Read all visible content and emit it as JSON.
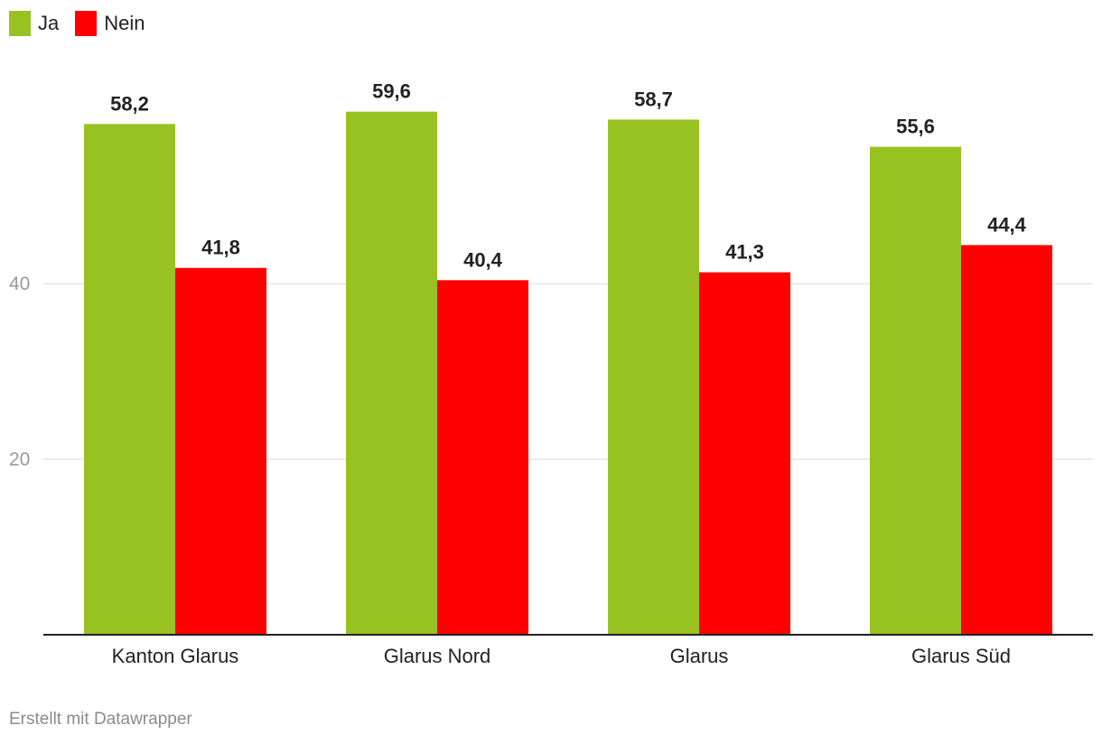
{
  "legend": {
    "items": [
      {
        "label": "Ja",
        "color": "#98c222"
      },
      {
        "label": "Nein",
        "color": "#ff0000"
      }
    ]
  },
  "chart_data": {
    "type": "bar",
    "categories": [
      "Kanton Glarus",
      "Glarus Nord",
      "Glarus",
      "Glarus Süd"
    ],
    "series": [
      {
        "name": "Ja",
        "color": "#98c222",
        "values": [
          58.2,
          59.6,
          58.7,
          55.6
        ],
        "labels": [
          "58,2",
          "59,6",
          "58,7",
          "55,6"
        ]
      },
      {
        "name": "Nein",
        "color": "#ff0000",
        "values": [
          41.8,
          40.4,
          41.3,
          44.4
        ],
        "labels": [
          "41,8",
          "40,4",
          "41,3",
          "44,4"
        ]
      }
    ],
    "yticks": [
      20,
      40
    ],
    "ylim": [
      0,
      60
    ],
    "grid": true,
    "legend_position": "top-left"
  },
  "footer": {
    "credit": "Erstellt mit Datawrapper"
  }
}
